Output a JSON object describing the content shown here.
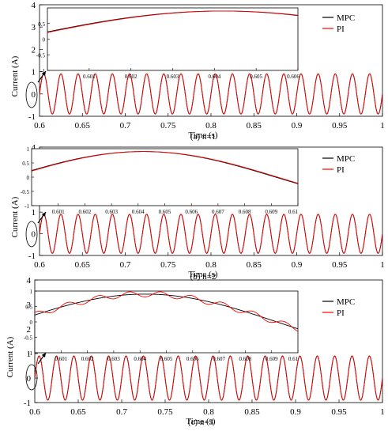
{
  "chart_data": [
    {
      "type": "line",
      "caption": "(a) n=1",
      "xlabel": "Time (s)",
      "ylabel": "Current (A)",
      "xlim": [
        0.6,
        1.0
      ],
      "ylim": [
        -1,
        4
      ],
      "xticks": [
        0.65,
        0.7,
        0.75,
        0.8,
        0.85,
        0.9,
        0.95,
        1
      ],
      "yticks": [
        -1,
        0,
        1,
        2,
        3,
        4
      ],
      "frequency_hz": 50,
      "amplitude": 0.9,
      "legend": {
        "position": "top-right",
        "entries": [
          "MPC",
          "PI"
        ]
      },
      "series": [
        {
          "name": "MPC",
          "color": "#000000"
        },
        {
          "name": "PI",
          "color": "#ff0000"
        }
      ],
      "inset": {
        "xlim": [
          0.6,
          0.606
        ],
        "ylim": [
          -1,
          1
        ],
        "xticks": [
          0.601,
          0.602,
          0.603,
          0.604,
          0.605,
          0.606
        ],
        "xticklabels": [
          "0.601",
          "0.602",
          "0.603",
          "0.604",
          "0.605",
          "0.606"
        ],
        "yticks": [
          -1,
          -0.5,
          0,
          0.5
        ],
        "yticklabels": [
          "-1",
          "-0.5",
          "0",
          "0.5"
        ],
        "series": [
          {
            "name": "MPC",
            "color": "#000000",
            "phase_shift": 3e-05,
            "ripple_amp": 0,
            "ripple_hz": 0
          },
          {
            "name": "PI",
            "color": "#ff0000",
            "phase_shift": -4e-05,
            "ripple_amp": 0,
            "ripple_hz": 0
          }
        ]
      }
    },
    {
      "type": "line",
      "caption": "(b) n=2",
      "xlabel": "Time (s)",
      "ylabel": "Current (A)",
      "xlim": [
        0.6,
        1.0
      ],
      "ylim": [
        -1,
        4
      ],
      "xticks": [
        0.65,
        0.7,
        0.75,
        0.8,
        0.85,
        0.9,
        0.95,
        1
      ],
      "yticks": [
        -1,
        0,
        1,
        2,
        3,
        4
      ],
      "frequency_hz": 50,
      "amplitude": 0.9,
      "legend": {
        "position": "top-right",
        "entries": [
          "MPC",
          "PI"
        ]
      },
      "series": [
        {
          "name": "MPC",
          "color": "#000000"
        },
        {
          "name": "PI",
          "color": "#ff0000"
        }
      ],
      "inset": {
        "xlim": [
          0.6,
          0.61
        ],
        "ylim": [
          -1,
          1
        ],
        "xticks": [
          0.601,
          0.602,
          0.603,
          0.604,
          0.605,
          0.606,
          0.607,
          0.608,
          0.609,
          0.61
        ],
        "xticklabels": [
          "0.601",
          "0.602",
          "0.603",
          "0.604",
          "0.605",
          "0.606",
          "0.607",
          "0.608",
          "0.609",
          "0.61"
        ],
        "yticks": [
          -1,
          -0.5,
          0,
          0.5,
          1
        ],
        "yticklabels": [
          "-1",
          "-0.5",
          "0",
          "0.5",
          "1"
        ],
        "series": [
          {
            "name": "MPC",
            "color": "#000000",
            "phase_shift": 3e-05,
            "ripple_amp": 0,
            "ripple_hz": 0
          },
          {
            "name": "PI",
            "color": "#ff0000",
            "phase_shift": -4e-05,
            "ripple_amp": 0,
            "ripple_hz": 0
          }
        ]
      }
    },
    {
      "type": "line",
      "caption": "(c) n=3",
      "xlabel": "Time (s)",
      "ylabel": "Current (A)",
      "xlim": [
        0.6,
        1.0
      ],
      "ylim": [
        -1,
        4
      ],
      "xticks": [
        0.65,
        0.7,
        0.75,
        0.8,
        0.85,
        0.9,
        0.95,
        1
      ],
      "yticks": [
        -1,
        0,
        1,
        2,
        3,
        4
      ],
      "frequency_hz": 50,
      "amplitude": 0.9,
      "legend": {
        "position": "top-right",
        "entries": [
          "MPC",
          "PI"
        ]
      },
      "series": [
        {
          "name": "MPC",
          "color": "#000000"
        },
        {
          "name": "PI",
          "color": "#ff0000"
        }
      ],
      "inset": {
        "xlim": [
          0.6,
          0.61
        ],
        "ylim": [
          -1,
          1
        ],
        "xticks": [
          0.601,
          0.602,
          0.603,
          0.604,
          0.605,
          0.606,
          0.607,
          0.608,
          0.609,
          0.61
        ],
        "xticklabels": [
          "0.601",
          "0.602",
          "0.603",
          "0.604",
          "0.605",
          "0.606",
          "0.607",
          "0.608",
          "0.609",
          "0.61"
        ],
        "yticks": [
          -1,
          -0.5,
          0,
          0.5,
          1
        ],
        "yticklabels": [
          "-1",
          "-0.5",
          "0",
          "0.5",
          "1"
        ],
        "series": [
          {
            "name": "MPC",
            "color": "#000000",
            "phase_shift": 0,
            "ripple_amp": 0,
            "ripple_hz": 0
          },
          {
            "name": "PI",
            "color": "#ff0000",
            "phase_shift": 0,
            "ripple_amp": 0.09,
            "ripple_hz": 850
          }
        ]
      }
    }
  ]
}
